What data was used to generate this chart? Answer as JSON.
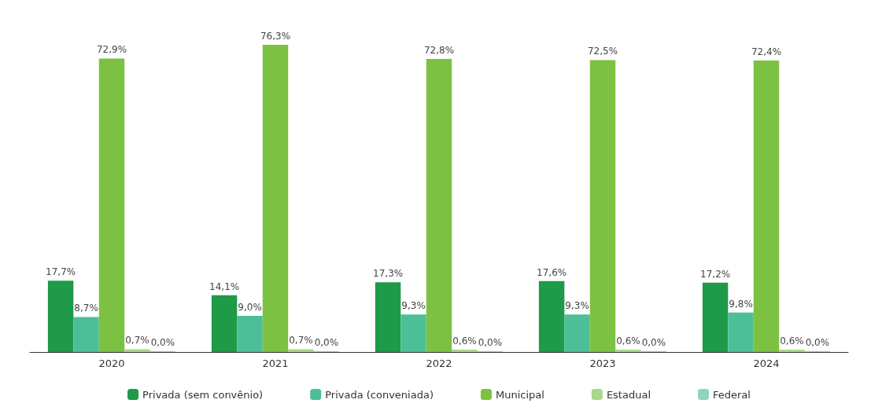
{
  "chart_data": {
    "type": "bar",
    "categories": [
      "2020",
      "2021",
      "2022",
      "2023",
      "2024"
    ],
    "series": [
      {
        "name": "Privada (sem convênio)",
        "color": "#1e9a48",
        "values": [
          17.7,
          14.1,
          17.3,
          17.6,
          17.2
        ],
        "value_labels": [
          "17,7%",
          "14,1%",
          "17,3%",
          "17,6%",
          "17,2%"
        ]
      },
      {
        "name": "Privada (conveniada)",
        "color": "#4cbf98",
        "values": [
          8.7,
          9.0,
          9.3,
          9.3,
          9.8
        ],
        "value_labels": [
          "8,7%",
          "9,0%",
          "9,3%",
          "9,3%",
          "9,8%"
        ]
      },
      {
        "name": "Municipal",
        "color": "#7dc143",
        "values": [
          72.9,
          76.3,
          72.8,
          72.5,
          72.4
        ],
        "value_labels": [
          "72,9%",
          "76,3%",
          "72,8%",
          "72,5%",
          "72,4%"
        ]
      },
      {
        "name": "Estadual",
        "color": "#a8d889",
        "values": [
          0.7,
          0.7,
          0.6,
          0.6,
          0.6
        ],
        "value_labels": [
          "0,7%",
          "0,7%",
          "0,6%",
          "0,6%",
          "0,6%"
        ]
      },
      {
        "name": "Federal",
        "color": "#8fd4c1",
        "values": [
          0.0,
          0.0,
          0.0,
          0.0,
          0.0
        ],
        "value_labels": [
          "0,0%",
          "0,0%",
          "0,0%",
          "0,0%",
          "0,0%"
        ]
      }
    ],
    "legend": "bottom"
  }
}
